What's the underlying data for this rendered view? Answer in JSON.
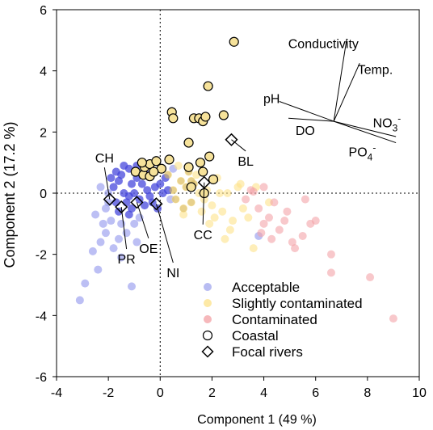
{
  "chart_data": {
    "type": "scatter",
    "xlabel": "Component 1 (49 %)",
    "ylabel": "Component 2 (17.2 %)",
    "xlim": [
      -4,
      10
    ],
    "ylim": [
      -6,
      6
    ],
    "xticks": [
      -4,
      -2,
      0,
      2,
      4,
      6,
      8,
      10
    ],
    "yticks": [
      -6,
      -4,
      -2,
      0,
      2,
      4,
      6
    ],
    "grid": false,
    "legend_position": "bottom-right",
    "colors": {
      "acceptable": "#8f94ec",
      "slightly": "#fde38a",
      "contaminated": "#f4a4a8",
      "overlay_dark": "#3a3ad8",
      "overlay_tan": "#d4b866",
      "coastal_fill": "#f6e29a"
    },
    "series": [
      {
        "name": "Acceptable",
        "color": "#8f94ec",
        "points": [
          [
            -3.1,
            -3.5
          ],
          [
            -2.9,
            -2.95
          ],
          [
            -2.4,
            -2.5
          ],
          [
            -2.6,
            -1.9
          ],
          [
            -2.3,
            -1.6
          ],
          [
            -2.2,
            -1.0
          ],
          [
            -2.5,
            -0.7
          ],
          [
            -2.1,
            -0.5
          ],
          [
            -1.9,
            -0.9
          ],
          [
            -1.8,
            -1.8
          ],
          [
            -1.6,
            -1.5
          ],
          [
            -1.5,
            -2.1
          ],
          [
            -1.3,
            -1.3
          ],
          [
            -1.2,
            -0.7
          ],
          [
            -1.0,
            -1.0
          ],
          [
            -0.9,
            -1.6
          ],
          [
            -1.8,
            0.2
          ],
          [
            -1.6,
            0.4
          ],
          [
            -1.5,
            0.6
          ],
          [
            -1.4,
            0.0
          ],
          [
            -1.3,
            -0.3
          ],
          [
            -1.2,
            0.8
          ],
          [
            -1.1,
            0.3
          ],
          [
            -1.0,
            0.0
          ],
          [
            -0.9,
            0.5
          ],
          [
            -0.8,
            -0.2
          ],
          [
            -0.7,
            0.3
          ],
          [
            -0.6,
            -0.4
          ],
          [
            -0.5,
            0.1
          ],
          [
            -0.4,
            0.6
          ],
          [
            -0.3,
            -0.3
          ],
          [
            -0.2,
            0.2
          ],
          [
            -0.1,
            -0.5
          ],
          [
            0.0,
            0.3
          ],
          [
            0.1,
            0.0
          ],
          [
            -1.7,
            -0.3
          ],
          [
            -2.0,
            0.0
          ],
          [
            -1.9,
            0.5
          ],
          [
            -1.6,
            -0.6
          ],
          [
            -1.4,
            0.9
          ],
          [
            -1.1,
            -0.5
          ],
          [
            -0.6,
            0.8
          ],
          [
            -2.3,
            0.2
          ],
          [
            -2.0,
            -0.3
          ],
          [
            -1.7,
            0.7
          ],
          [
            -1.2,
            -0.1
          ],
          [
            -0.9,
            0.9
          ],
          [
            -0.4,
            -0.1
          ],
          [
            0.2,
            0.5
          ],
          [
            0.3,
            0.1
          ],
          [
            -1.5,
            -1.0
          ],
          [
            -0.8,
            -0.8
          ],
          [
            -1.1,
            -3.05
          ],
          [
            -2.1,
            -1.3
          ],
          [
            0.5,
            0.8
          ],
          [
            0.4,
            -0.2
          ],
          [
            3.8,
            -1.4
          ]
        ]
      },
      {
        "name": "Slightly contaminated",
        "color": "#fde38a",
        "points": [
          [
            0.5,
            0.1
          ],
          [
            0.6,
            -0.2
          ],
          [
            0.8,
            0.4
          ],
          [
            0.9,
            -0.5
          ],
          [
            1.0,
            0.2
          ],
          [
            1.2,
            -0.3
          ],
          [
            1.3,
            0.3
          ],
          [
            1.5,
            0.0
          ],
          [
            1.6,
            -0.6
          ],
          [
            1.8,
            0.1
          ],
          [
            2.0,
            -0.4
          ],
          [
            2.2,
            0.5
          ],
          [
            2.4,
            -0.6
          ],
          [
            2.6,
            0.0
          ],
          [
            2.8,
            -0.9
          ],
          [
            3.0,
            0.2
          ],
          [
            0.7,
            0.9
          ],
          [
            1.1,
            0.7
          ],
          [
            1.4,
            0.6
          ],
          [
            1.7,
            -0.2
          ],
          [
            2.1,
            -0.8
          ],
          [
            2.3,
            0.0
          ],
          [
            2.7,
            -1.2
          ],
          [
            3.2,
            -0.5
          ],
          [
            3.4,
            -0.8
          ],
          [
            3.7,
            0.2
          ],
          [
            0.9,
            -0.7
          ],
          [
            1.9,
            -1.0
          ],
          [
            2.5,
            -1.5
          ],
          [
            3.6,
            -1.8
          ],
          [
            4.2,
            -0.3
          ],
          [
            1.2,
            0.4
          ],
          [
            0.3,
            0.6
          ],
          [
            3.1,
            0.3
          ]
        ]
      },
      {
        "name": "Contaminated",
        "color": "#f4a4a8",
        "points": [
          [
            3.3,
            -0.2
          ],
          [
            3.5,
            0.1
          ],
          [
            3.8,
            -0.5
          ],
          [
            4.0,
            -1.0
          ],
          [
            4.2,
            -0.8
          ],
          [
            4.4,
            -0.3
          ],
          [
            4.6,
            -1.2
          ],
          [
            4.9,
            -0.6
          ],
          [
            5.1,
            -1.6
          ],
          [
            5.2,
            -1.8
          ],
          [
            5.6,
            -0.2
          ],
          [
            5.8,
            -1.0
          ],
          [
            6.6,
            -2.0
          ],
          [
            6.6,
            -2.6
          ],
          [
            6.0,
            -0.9
          ],
          [
            5.5,
            -1.4
          ],
          [
            8.1,
            -2.75
          ],
          [
            9.0,
            -4.1
          ],
          [
            4.0,
            0.2
          ],
          [
            4.3,
            -1.5
          ],
          [
            3.9,
            -1.3
          ],
          [
            4.8,
            -0.9
          ],
          [
            3.6,
            0.05
          ]
        ]
      },
      {
        "name": "Coastal",
        "color": "#f6e29a",
        "marker": "circle-outline",
        "points": [
          [
            2.85,
            4.95
          ],
          [
            1.85,
            3.5
          ],
          [
            0.45,
            2.65
          ],
          [
            0.5,
            2.45
          ],
          [
            1.3,
            2.45
          ],
          [
            1.5,
            2.45
          ],
          [
            1.65,
            2.35
          ],
          [
            1.75,
            2.5
          ],
          [
            2.45,
            2.55
          ],
          [
            1.1,
            1.65
          ],
          [
            1.9,
            1.2
          ],
          [
            0.35,
            1.1
          ],
          [
            1.55,
            1.0
          ],
          [
            2.05,
            0.45
          ],
          [
            1.1,
            0.85
          ],
          [
            1.2,
            0.2
          ],
          [
            1.7,
            0.0
          ],
          [
            1.65,
            0.7
          ],
          [
            -0.95,
            0.7
          ],
          [
            -0.65,
            0.6
          ],
          [
            -0.4,
            0.55
          ],
          [
            -0.6,
            0.85
          ],
          [
            -0.4,
            0.95
          ],
          [
            0.05,
            0.8
          ],
          [
            -0.7,
            1.0
          ],
          [
            -0.25,
            0.7
          ],
          [
            -0.15,
            1.05
          ]
        ]
      },
      {
        "name": "Focal rivers",
        "marker": "diamond-outline",
        "points": [
          [
            2.75,
            1.75
          ],
          [
            -1.95,
            -0.2
          ],
          [
            -1.5,
            -0.45
          ],
          [
            -0.9,
            -0.3
          ],
          [
            -0.15,
            -0.35
          ],
          [
            1.7,
            0.35
          ]
        ]
      }
    ],
    "site_labels": [
      {
        "text": "CH",
        "x": -2.15,
        "y": 1.0
      },
      {
        "text": "PR",
        "x": -1.3,
        "y": -2.3
      },
      {
        "text": "OE",
        "x": -0.45,
        "y": -1.95
      },
      {
        "text": "NI",
        "x": 0.5,
        "y": -2.75
      },
      {
        "text": "CC",
        "x": 1.65,
        "y": -1.5
      },
      {
        "text": "BL",
        "x": 3.3,
        "y": 0.9
      }
    ],
    "loadings_origin": [
      6.7,
      2.35
    ],
    "loadings": [
      {
        "text": "Conductivity",
        "x": 7.2,
        "y": 5.05,
        "label_x": 6.3,
        "label_y": 4.75
      },
      {
        "text": "Temp.",
        "x": 7.7,
        "y": 4.25,
        "label_x": 8.3,
        "label_y": 3.9
      },
      {
        "text": "pH",
        "x": 4.6,
        "y": 3.0,
        "label_x": 4.3,
        "label_y": 2.95
      },
      {
        "text": "DO",
        "x": 4.95,
        "y": 2.45,
        "label_x": 5.6,
        "label_y": 1.9
      },
      {
        "text": "NO3-",
        "x": 9.1,
        "y": 1.85,
        "label_x": 8.75,
        "label_y": 2.15
      },
      {
        "text": "PO4-",
        "x": 9.1,
        "y": 1.65,
        "label_x": 7.8,
        "label_y": 1.2
      }
    ],
    "legend": [
      {
        "label": "Acceptable",
        "marker": "dot",
        "color": "#b8bcf2"
      },
      {
        "label": "Slightly contaminated",
        "marker": "dot",
        "color": "#fde9a6"
      },
      {
        "label": "Contaminated",
        "marker": "dot",
        "color": "#f6b8bb"
      },
      {
        "label": "Coastal",
        "marker": "circle"
      },
      {
        "label": "Focal rivers",
        "marker": "diamond"
      }
    ]
  }
}
